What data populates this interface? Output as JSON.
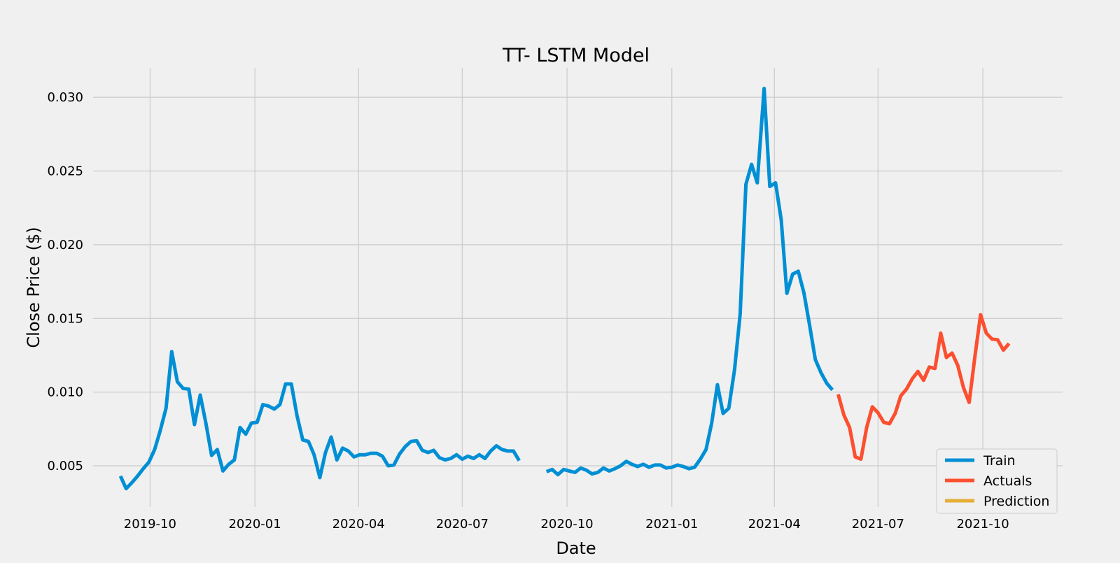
{
  "chart_data": {
    "type": "line",
    "title": "TT- LSTM Model",
    "xlabel": "Date",
    "ylabel": "Close Price ($)",
    "xlim": [
      "2019-08-12",
      "2021-12-10"
    ],
    "ylim": [
      0.0022,
      0.032
    ],
    "x_ticks": [
      "2019-10",
      "2020-01",
      "2020-04",
      "2020-07",
      "2020-10",
      "2021-01",
      "2021-04",
      "2021-07",
      "2021-10"
    ],
    "y_ticks": [
      "0.005",
      "0.010",
      "0.015",
      "0.020",
      "0.025",
      "0.030"
    ],
    "grid": true,
    "legend_position": "lower-right",
    "colors": {
      "Train": "#008fd5",
      "Actuals": "#fc4f30",
      "Prediction": "#e5ae38"
    },
    "series": [
      {
        "name": "Train",
        "segments": [
          [
            [
              "2019-09-05",
              0.0043
            ],
            [
              "2019-09-10",
              0.00345
            ],
            [
              "2019-09-15",
              0.00385
            ],
            [
              "2019-09-20",
              0.0043
            ],
            [
              "2019-09-25",
              0.0048
            ],
            [
              "2019-09-30",
              0.00525
            ],
            [
              "2019-10-05",
              0.0061
            ],
            [
              "2019-10-10",
              0.0074
            ],
            [
              "2019-10-15",
              0.0089
            ],
            [
              "2019-10-20",
              0.01275
            ],
            [
              "2019-10-25",
              0.0107
            ],
            [
              "2019-10-30",
              0.01025
            ],
            [
              "2019-11-04",
              0.0102
            ],
            [
              "2019-11-09",
              0.0078
            ],
            [
              "2019-11-14",
              0.0098
            ],
            [
              "2019-11-19",
              0.0079
            ],
            [
              "2019-11-24",
              0.0057
            ],
            [
              "2019-11-29",
              0.0061
            ],
            [
              "2019-12-04",
              0.00465
            ],
            [
              "2019-12-09",
              0.0051
            ],
            [
              "2019-12-14",
              0.0054
            ],
            [
              "2019-12-19",
              0.0076
            ],
            [
              "2019-12-24",
              0.00715
            ],
            [
              "2019-12-29",
              0.0079
            ],
            [
              "2020-01-03",
              0.00795
            ],
            [
              "2020-01-08",
              0.00915
            ],
            [
              "2020-01-13",
              0.00905
            ],
            [
              "2020-01-18",
              0.00885
            ],
            [
              "2020-01-23",
              0.00915
            ],
            [
              "2020-01-28",
              0.01055
            ],
            [
              "2020-02-02",
              0.01055
            ],
            [
              "2020-02-07",
              0.0084
            ],
            [
              "2020-02-12",
              0.00675
            ],
            [
              "2020-02-17",
              0.00665
            ],
            [
              "2020-02-22",
              0.00575
            ],
            [
              "2020-02-27",
              0.0042
            ],
            [
              "2020-03-03",
              0.0059
            ],
            [
              "2020-03-08",
              0.00695
            ],
            [
              "2020-03-13",
              0.0054
            ],
            [
              "2020-03-18",
              0.0062
            ],
            [
              "2020-03-23",
              0.006
            ],
            [
              "2020-03-28",
              0.0056
            ],
            [
              "2020-04-02",
              0.00575
            ],
            [
              "2020-04-07",
              0.00575
            ],
            [
              "2020-04-12",
              0.00585
            ],
            [
              "2020-04-17",
              0.00585
            ],
            [
              "2020-04-22",
              0.00565
            ],
            [
              "2020-04-27",
              0.005
            ],
            [
              "2020-05-02",
              0.00505
            ],
            [
              "2020-05-07",
              0.0058
            ],
            [
              "2020-05-12",
              0.0063
            ],
            [
              "2020-05-17",
              0.00665
            ],
            [
              "2020-05-22",
              0.0067
            ],
            [
              "2020-05-27",
              0.00605
            ],
            [
              "2020-06-01",
              0.0059
            ],
            [
              "2020-06-06",
              0.00605
            ],
            [
              "2020-06-11",
              0.00555
            ],
            [
              "2020-06-16",
              0.0054
            ],
            [
              "2020-06-21",
              0.0055
            ],
            [
              "2020-06-26",
              0.00575
            ],
            [
              "2020-07-01",
              0.00545
            ],
            [
              "2020-07-06",
              0.00565
            ],
            [
              "2020-07-11",
              0.0055
            ],
            [
              "2020-07-16",
              0.00575
            ],
            [
              "2020-07-21",
              0.0055
            ],
            [
              "2020-07-26",
              0.006
            ],
            [
              "2020-07-31",
              0.00635
            ],
            [
              "2020-08-05",
              0.0061
            ],
            [
              "2020-08-10",
              0.006
            ],
            [
              "2020-08-15",
              0.006
            ],
            [
              "2020-08-20",
              0.00535
            ]
          ],
          [
            [
              "2020-09-13",
              0.0046
            ],
            [
              "2020-09-18",
              0.00475
            ],
            [
              "2020-09-23",
              0.0044
            ],
            [
              "2020-09-28",
              0.00475
            ],
            [
              "2020-10-03",
              0.00465
            ],
            [
              "2020-10-08",
              0.00455
            ],
            [
              "2020-10-13",
              0.00485
            ],
            [
              "2020-10-18",
              0.0047
            ],
            [
              "2020-10-23",
              0.00445
            ],
            [
              "2020-10-28",
              0.00455
            ],
            [
              "2020-11-02",
              0.00485
            ],
            [
              "2020-11-07",
              0.00465
            ],
            [
              "2020-11-12",
              0.0048
            ],
            [
              "2020-11-17",
              0.005
            ],
            [
              "2020-11-22",
              0.0053
            ],
            [
              "2020-11-27",
              0.0051
            ],
            [
              "2020-12-02",
              0.00495
            ],
            [
              "2020-12-07",
              0.0051
            ],
            [
              "2020-12-12",
              0.0049
            ],
            [
              "2020-12-17",
              0.00505
            ],
            [
              "2020-12-22",
              0.00505
            ],
            [
              "2020-12-27",
              0.00485
            ],
            [
              "2021-01-01",
              0.0049
            ],
            [
              "2021-01-06",
              0.00505
            ],
            [
              "2021-01-11",
              0.00495
            ],
            [
              "2021-01-16",
              0.0048
            ],
            [
              "2021-01-21",
              0.0049
            ],
            [
              "2021-01-26",
              0.00545
            ],
            [
              "2021-01-31",
              0.0061
            ],
            [
              "2021-02-05",
              0.0079
            ],
            [
              "2021-02-10",
              0.0105
            ],
            [
              "2021-02-15",
              0.00855
            ],
            [
              "2021-02-20",
              0.0089
            ],
            [
              "2021-02-25",
              0.0115
            ],
            [
              "2021-03-02",
              0.0153
            ],
            [
              "2021-03-07",
              0.0241
            ],
            [
              "2021-03-12",
              0.02545
            ],
            [
              "2021-03-17",
              0.0242
            ],
            [
              "2021-03-23",
              0.0306
            ],
            [
              "2021-03-28",
              0.02395
            ],
            [
              "2021-04-02",
              0.0242
            ],
            [
              "2021-04-07",
              0.0217
            ],
            [
              "2021-04-12",
              0.0167
            ],
            [
              "2021-04-17",
              0.018
            ],
            [
              "2021-04-22",
              0.0182
            ],
            [
              "2021-04-27",
              0.0167
            ],
            [
              "2021-05-02",
              0.0145
            ],
            [
              "2021-05-07",
              0.0122
            ],
            [
              "2021-05-12",
              0.0113
            ],
            [
              "2021-05-17",
              0.0106
            ],
            [
              "2021-05-22",
              0.01015
            ]
          ]
        ]
      },
      {
        "name": "Actuals",
        "segments": [
          [
            [
              "2021-05-27",
              0.00985
            ],
            [
              "2021-06-01",
              0.00845
            ],
            [
              "2021-06-06",
              0.0076
            ],
            [
              "2021-06-11",
              0.0056
            ],
            [
              "2021-06-16",
              0.00545
            ],
            [
              "2021-06-21",
              0.0076
            ],
            [
              "2021-06-26",
              0.009
            ],
            [
              "2021-07-01",
              0.0086
            ],
            [
              "2021-07-06",
              0.00795
            ],
            [
              "2021-07-11",
              0.00785
            ],
            [
              "2021-07-16",
              0.00855
            ],
            [
              "2021-07-21",
              0.00975
            ],
            [
              "2021-07-26",
              0.0102
            ],
            [
              "2021-07-31",
              0.0109
            ],
            [
              "2021-08-05",
              0.0114
            ],
            [
              "2021-08-10",
              0.0108
            ],
            [
              "2021-08-15",
              0.0117
            ],
            [
              "2021-08-20",
              0.0116
            ],
            [
              "2021-08-25",
              0.014
            ],
            [
              "2021-08-30",
              0.01235
            ],
            [
              "2021-09-04",
              0.01265
            ],
            [
              "2021-09-09",
              0.0118
            ],
            [
              "2021-09-14",
              0.0103
            ],
            [
              "2021-09-19",
              0.0093
            ],
            [
              "2021-09-24",
              0.0124
            ],
            [
              "2021-09-29",
              0.01525
            ],
            [
              "2021-10-04",
              0.014
            ],
            [
              "2021-10-09",
              0.0136
            ],
            [
              "2021-10-14",
              0.01355
            ],
            [
              "2021-10-19",
              0.01285
            ],
            [
              "2021-10-24",
              0.0133
            ]
          ]
        ]
      },
      {
        "name": "Prediction",
        "segments": []
      }
    ]
  }
}
